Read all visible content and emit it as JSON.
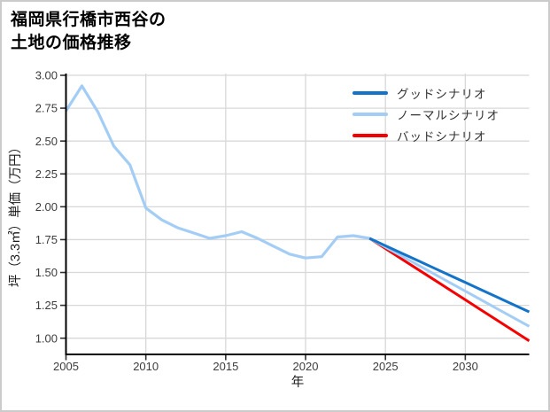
{
  "header": {
    "title_lines": [
      "福岡県行橋市西谷の",
      "土地の価格推移"
    ]
  },
  "chart_data": {
    "type": "line",
    "title": "福岡県行橋市西谷の土地の価格推移",
    "xlabel": "年",
    "ylabel": "坪（3.3㎡）単価（万円）",
    "x_ticks": [
      2005,
      2010,
      2015,
      2020,
      2025,
      2030
    ],
    "y_ticks": [
      "3.00",
      "2.75",
      "2.50",
      "2.25",
      "2.00",
      "1.75",
      "1.50",
      "1.25",
      "1.00"
    ],
    "xlim": [
      2005,
      2034
    ],
    "ylim": [
      0.88,
      3.01
    ],
    "grid": true,
    "legend_position": "upper right",
    "history": {
      "color": "#a3cdf5",
      "years": [
        2005,
        2006,
        2007,
        2008,
        2009,
        2010,
        2011,
        2012,
        2013,
        2014,
        2015,
        2016,
        2017,
        2018,
        2019,
        2020,
        2021,
        2022,
        2023,
        2024
      ],
      "values": [
        2.73,
        2.92,
        2.72,
        2.46,
        2.32,
        1.99,
        1.9,
        1.84,
        1.8,
        1.76,
        1.78,
        1.81,
        1.76,
        1.7,
        1.64,
        1.61,
        1.62,
        1.77,
        1.78,
        1.76
      ]
    },
    "scenarios": [
      {
        "name": "グッドシナリオ",
        "color": "#1273c8",
        "years": [
          2024,
          2025,
          2026,
          2027,
          2028,
          2029,
          2030,
          2031,
          2032,
          2033,
          2034
        ],
        "values": [
          1.76,
          1.704,
          1.648,
          1.592,
          1.536,
          1.48,
          1.424,
          1.368,
          1.312,
          1.256,
          1.2
        ]
      },
      {
        "name": "ノーマルシナリオ",
        "color": "#a3cdf5",
        "years": [
          2024,
          2025,
          2026,
          2027,
          2028,
          2029,
          2030,
          2031,
          2032,
          2033,
          2034
        ],
        "values": [
          1.76,
          1.693,
          1.626,
          1.559,
          1.492,
          1.425,
          1.358,
          1.291,
          1.224,
          1.157,
          1.09
        ]
      },
      {
        "name": "バッドシナリオ",
        "color": "#f50000",
        "years": [
          2024,
          2025,
          2026,
          2027,
          2028,
          2029,
          2030,
          2031,
          2032,
          2033,
          2034
        ],
        "values": [
          1.76,
          1.682,
          1.604,
          1.526,
          1.448,
          1.37,
          1.292,
          1.214,
          1.136,
          1.058,
          0.98
        ]
      }
    ]
  }
}
